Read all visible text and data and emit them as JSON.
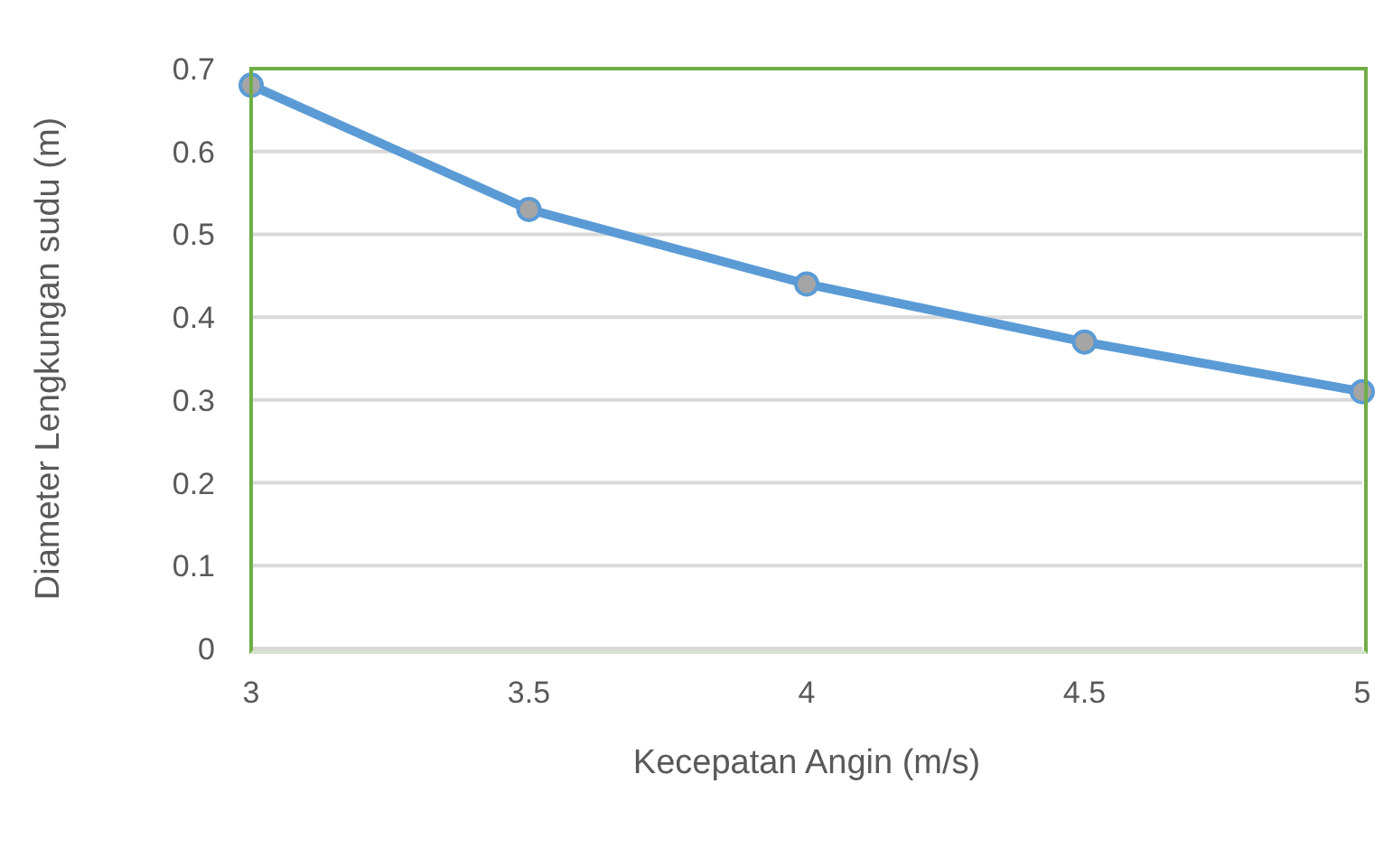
{
  "chart_data": {
    "type": "line",
    "xlabel": "Kecepatan Angin (m/s)",
    "ylabel": "Diameter Lengkungan sudu (m)",
    "categories": [
      "3",
      "3.5",
      "4",
      "4.5",
      "5"
    ],
    "series": [
      {
        "color": "#5b9bd5",
        "values": [
          0.68,
          0.53,
          0.44,
          0.37,
          0.31
        ]
      }
    ],
    "ylim": [
      0,
      0.7
    ],
    "yticks": [
      0,
      0.1,
      0.2,
      0.3,
      0.4,
      0.5,
      0.6,
      0.7
    ],
    "grid": "y",
    "marker": "circle",
    "legend": false
  }
}
